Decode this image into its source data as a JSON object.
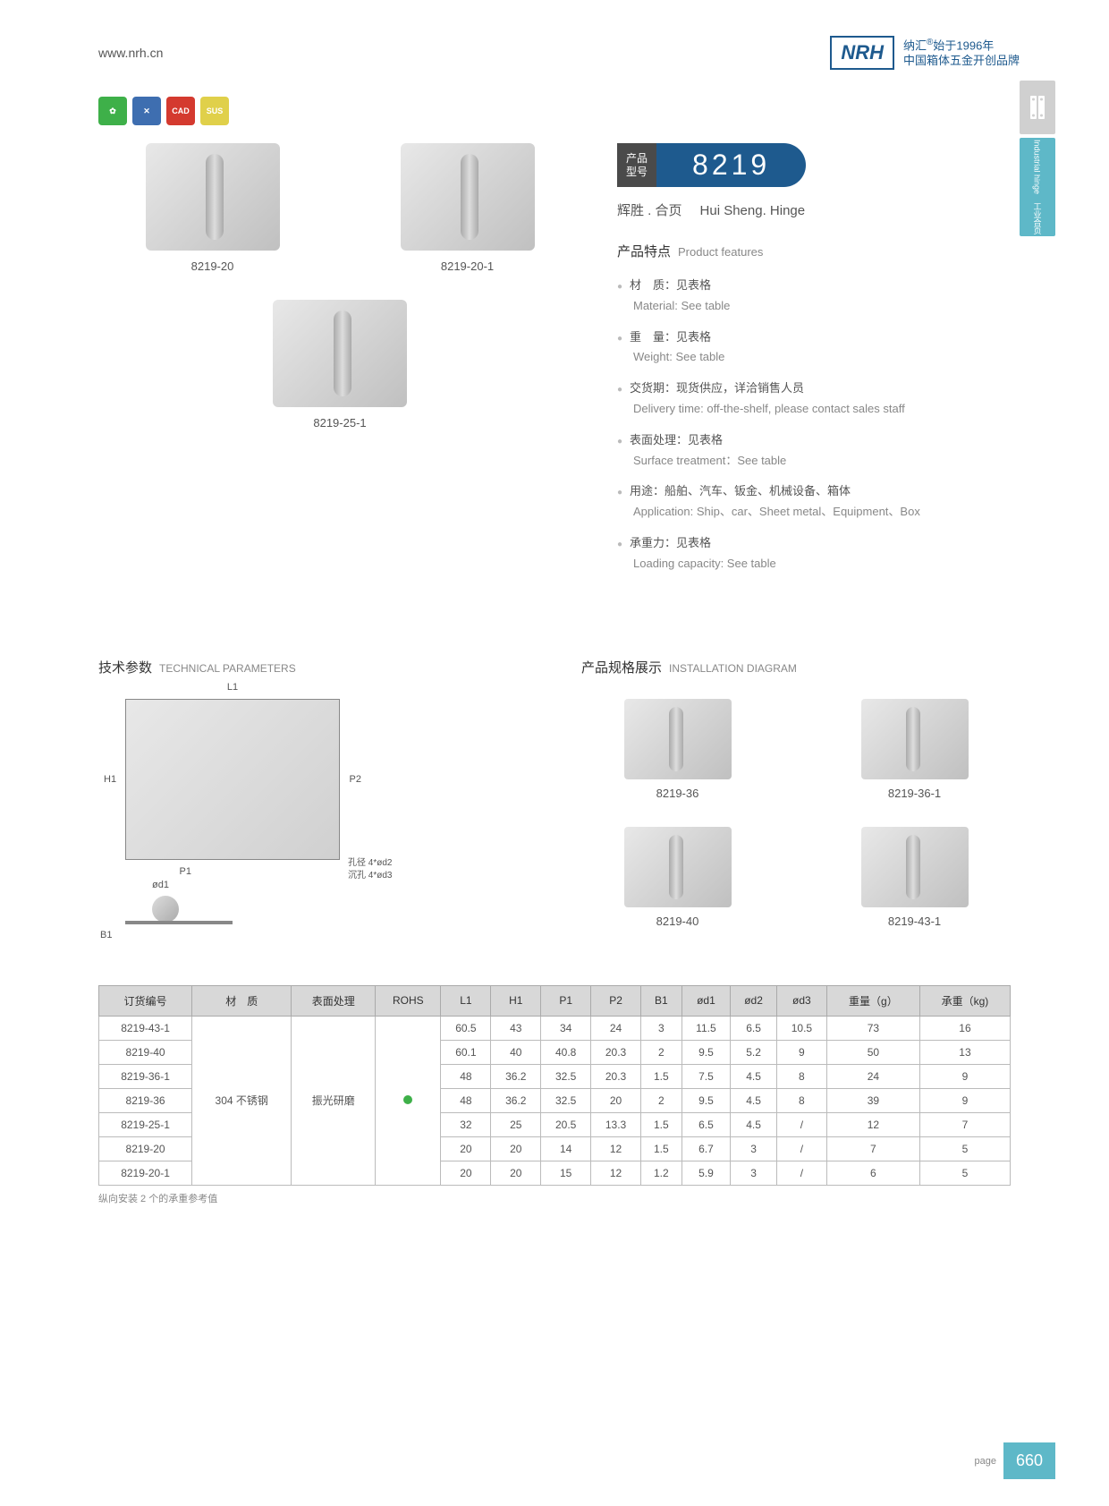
{
  "header": {
    "website": "www.nrh.cn",
    "logo": "NRH",
    "brand_cn": "纳汇",
    "brand_year": "始于1996年",
    "brand_tagline": "中国箱体五金开创品牌"
  },
  "side_tab": {
    "active_cn": "工业合页",
    "active_en": "Industrial hinge"
  },
  "badges": [
    "eco",
    "tool",
    "CAD",
    "SUS"
  ],
  "products_top": [
    {
      "label": "8219-20"
    },
    {
      "label": "8219-20-1"
    },
    {
      "label": "8219-25-1"
    }
  ],
  "model": {
    "label_cn1": "产品",
    "label_cn2": "型号",
    "number": "8219",
    "name_cn": "辉胜 . 合页",
    "name_en": "Hui Sheng. Hinge"
  },
  "features": {
    "title_cn": "产品特点",
    "title_en": "Product features",
    "items": [
      {
        "cn": "材　质：见表格",
        "en": "Material: See table"
      },
      {
        "cn": "重　量：见表格",
        "en": "Weight: See table"
      },
      {
        "cn": "交货期：现货供应，详洽销售人员",
        "en": "Delivery time: off-the-shelf, please contact sales staff"
      },
      {
        "cn": "表面处理：见表格",
        "en": "Surface treatment：See table"
      },
      {
        "cn": "用途：船舶、汽车、钣金、机械设备、箱体",
        "en": "Application: Ship、car、Sheet metal、Equipment、Box"
      },
      {
        "cn": "承重力：见表格",
        "en": "Loading capacity: See table"
      }
    ]
  },
  "tech": {
    "title_cn": "技术参数",
    "title_en": "TECHNICAL PARAMETERS",
    "dims": {
      "L1": "L1",
      "H1": "H1",
      "P1": "P1",
      "P2": "P2",
      "B1": "B1",
      "d1": "ød1"
    },
    "note1": "孔径 4*ød2",
    "note2": "沉孔 4*ød3"
  },
  "install": {
    "title_cn": "产品规格展示",
    "title_en": "INSTALLATION DIAGRAM",
    "items": [
      {
        "label": "8219-36"
      },
      {
        "label": "8219-36-1"
      },
      {
        "label": "8219-40"
      },
      {
        "label": "8219-43-1"
      }
    ]
  },
  "table": {
    "headers": [
      "订货编号",
      "材　质",
      "表面处理",
      "ROHS",
      "L1",
      "H1",
      "P1",
      "P2",
      "B1",
      "ød1",
      "ød2",
      "ød3",
      "重量（g）",
      "承重（kg)"
    ],
    "material": "304 不锈钢",
    "surface": "振光研磨",
    "rows": [
      [
        "8219-43-1",
        "60.5",
        "43",
        "34",
        "24",
        "3",
        "11.5",
        "6.5",
        "10.5",
        "73",
        "16"
      ],
      [
        "8219-40",
        "60.1",
        "40",
        "40.8",
        "20.3",
        "2",
        "9.5",
        "5.2",
        "9",
        "50",
        "13"
      ],
      [
        "8219-36-1",
        "48",
        "36.2",
        "32.5",
        "20.3",
        "1.5",
        "7.5",
        "4.5",
        "8",
        "24",
        "9"
      ],
      [
        "8219-36",
        "48",
        "36.2",
        "32.5",
        "20",
        "2",
        "9.5",
        "4.5",
        "8",
        "39",
        "9"
      ],
      [
        "8219-25-1",
        "32",
        "25",
        "20.5",
        "13.3",
        "1.5",
        "6.5",
        "4.5",
        "/",
        "12",
        "7"
      ],
      [
        "8219-20",
        "20",
        "20",
        "14",
        "12",
        "1.5",
        "6.7",
        "3",
        "/",
        "7",
        "5"
      ],
      [
        "8219-20-1",
        "20",
        "20",
        "15",
        "12",
        "1.2",
        "5.9",
        "3",
        "/",
        "6",
        "5"
      ]
    ],
    "note": "纵向安装 2 个的承重参考值"
  },
  "footer": {
    "label": "page",
    "num": "660"
  }
}
